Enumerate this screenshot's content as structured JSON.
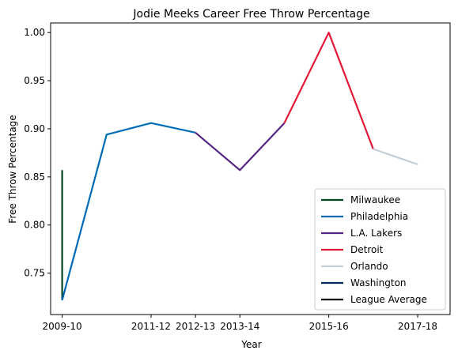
{
  "chart_data": {
    "type": "line",
    "title": "Jodie Meeks Career Free Throw Percentage",
    "xlabel": "Year",
    "ylabel": "Free Throw Percentage",
    "x_tick_labels": [
      "2009-10",
      "2011-12",
      "2012-13",
      "2013-14",
      "2015-16",
      "2017-18"
    ],
    "ylim": [
      0.707,
      1.01
    ],
    "y_ticks": [
      "0.75",
      "0.80",
      "0.85",
      "0.90",
      "0.95",
      "1.00"
    ],
    "legend_position": "lower-right",
    "series": [
      {
        "name": "Milwaukee",
        "color": "#00471B",
        "x": [
          "2009-10",
          "2009-10"
        ],
        "y": [
          0.857,
          0.722
        ]
      },
      {
        "name": "Philadelphia",
        "color": "#006BB6",
        "x": [
          "2009-10",
          "2010-11",
          "2011-12",
          "2012-13"
        ],
        "y": [
          0.722,
          0.894,
          0.906,
          0.896
        ]
      },
      {
        "name": "L.A. Lakers",
        "color": "#552583",
        "x": [
          "2012-13",
          "2013-14",
          "2014-15"
        ],
        "y": [
          0.896,
          0.857,
          0.906
        ]
      },
      {
        "name": "Detroit",
        "color": "#E31837",
        "x": [
          "2014-15",
          "2015-16",
          "2016-17"
        ],
        "y": [
          0.906,
          1.0,
          0.879
        ]
      },
      {
        "name": "Orlando",
        "color": "#C4CED4",
        "x": [
          "2016-17",
          "2017-18"
        ],
        "y": [
          0.879,
          0.863
        ]
      },
      {
        "name": "Washington",
        "color": "#002B5C",
        "x": [],
        "y": []
      },
      {
        "name": "League Average",
        "color": "#000000",
        "x": [],
        "y": []
      }
    ]
  }
}
